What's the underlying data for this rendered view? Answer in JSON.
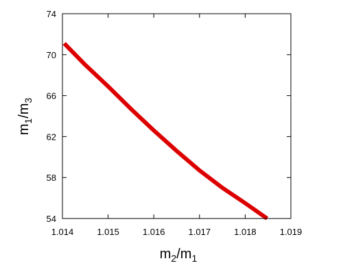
{
  "chart_data": {
    "type": "line",
    "title": "",
    "xlabel": {
      "base1": "m",
      "sub1": "2",
      "slash": "/",
      "base2": "m",
      "sub2": "1"
    },
    "ylabel": {
      "base1": "m",
      "sub1": "1",
      "slash": "/",
      "base2": "m",
      "sub2": "3"
    },
    "xlim": [
      1.014,
      1.019
    ],
    "ylim": [
      54,
      74
    ],
    "xticks": [
      1.014,
      1.015,
      1.016,
      1.017,
      1.018,
      1.019
    ],
    "xtick_labels": [
      "1.014",
      "1.015",
      "1.016",
      "1.017",
      "1.018",
      "1.019"
    ],
    "yticks": [
      54,
      58,
      62,
      66,
      70,
      74
    ],
    "ytick_labels": [
      "54",
      "58",
      "62",
      "66",
      "70",
      "74"
    ],
    "grid": false,
    "legend": "none",
    "series": [
      {
        "color": "#dd0000",
        "x": [
          1.01404,
          1.0145,
          1.015,
          1.0155,
          1.016,
          1.0165,
          1.017,
          1.0175,
          1.018,
          1.01848
        ],
        "y": [
          71.1,
          69.0,
          66.9,
          64.7,
          62.6,
          60.6,
          58.7,
          57.0,
          55.5,
          54.0
        ]
      }
    ]
  }
}
